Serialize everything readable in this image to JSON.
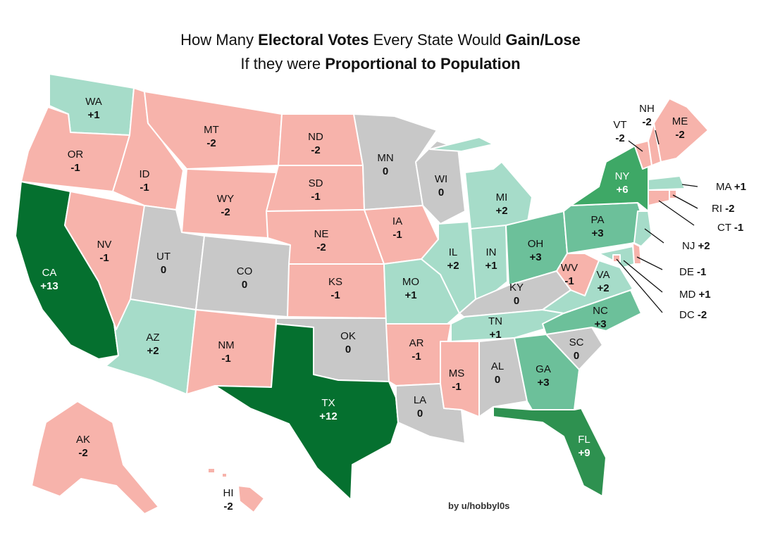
{
  "title": {
    "line1": [
      {
        "text": "How Many ",
        "bold": false
      },
      {
        "text": "Electoral Votes",
        "bold": true
      },
      {
        "text": " Every State Would ",
        "bold": false
      },
      {
        "text": "Gain/Lose",
        "bold": true
      }
    ],
    "line2": [
      {
        "text": "If they were ",
        "bold": false
      },
      {
        "text": "Proportional to Population",
        "bold": true
      }
    ]
  },
  "credit": "by u/hobbyl0s",
  "colors": {
    "-2": "#f7b3ab",
    "-1": "#f7b3ab",
    "0": "#c8c8c8",
    "1": "#a6dcc9",
    "2": "#a6dcc9",
    "3": "#6cc09a",
    "6": "#3ea866",
    "9": "#2e9150",
    "12": "#05702f",
    "13": "#05702f"
  },
  "states": [
    {
      "code": "WA",
      "change": "+1"
    },
    {
      "code": "OR",
      "change": "-1"
    },
    {
      "code": "CA",
      "change": "+13"
    },
    {
      "code": "NV",
      "change": "-1"
    },
    {
      "code": "ID",
      "change": "-1"
    },
    {
      "code": "MT",
      "change": "-2"
    },
    {
      "code": "WY",
      "change": "-2"
    },
    {
      "code": "UT",
      "change": "0"
    },
    {
      "code": "AZ",
      "change": "+2"
    },
    {
      "code": "CO",
      "change": "0"
    },
    {
      "code": "NM",
      "change": "-1"
    },
    {
      "code": "ND",
      "change": "-2"
    },
    {
      "code": "SD",
      "change": "-1"
    },
    {
      "code": "NE",
      "change": "-2"
    },
    {
      "code": "KS",
      "change": "-1"
    },
    {
      "code": "OK",
      "change": "0"
    },
    {
      "code": "TX",
      "change": "+12"
    },
    {
      "code": "MN",
      "change": "0"
    },
    {
      "code": "IA",
      "change": "-1"
    },
    {
      "code": "MO",
      "change": "+1"
    },
    {
      "code": "AR",
      "change": "-1"
    },
    {
      "code": "LA",
      "change": "0"
    },
    {
      "code": "WI",
      "change": "0"
    },
    {
      "code": "IL",
      "change": "+2"
    },
    {
      "code": "MI",
      "change": "+2"
    },
    {
      "code": "IN",
      "change": "+1"
    },
    {
      "code": "OH",
      "change": "+3"
    },
    {
      "code": "KY",
      "change": "0"
    },
    {
      "code": "TN",
      "change": "+1"
    },
    {
      "code": "MS",
      "change": "-1"
    },
    {
      "code": "AL",
      "change": "0"
    },
    {
      "code": "GA",
      "change": "+3"
    },
    {
      "code": "FL",
      "change": "+9"
    },
    {
      "code": "SC",
      "change": "0"
    },
    {
      "code": "NC",
      "change": "+3"
    },
    {
      "code": "VA",
      "change": "+2"
    },
    {
      "code": "WV",
      "change": "-1"
    },
    {
      "code": "PA",
      "change": "+3"
    },
    {
      "code": "NY",
      "change": "+6"
    },
    {
      "code": "VT",
      "change": "-2"
    },
    {
      "code": "NH",
      "change": "-2"
    },
    {
      "code": "ME",
      "change": "-2"
    },
    {
      "code": "MA",
      "change": "+1"
    },
    {
      "code": "RI",
      "change": "-2"
    },
    {
      "code": "CT",
      "change": "-1"
    },
    {
      "code": "NJ",
      "change": "+2"
    },
    {
      "code": "DE",
      "change": "-1"
    },
    {
      "code": "MD",
      "change": "+1"
    },
    {
      "code": "DC",
      "change": "-2"
    },
    {
      "code": "AK",
      "change": "-2"
    },
    {
      "code": "HI",
      "change": "-2"
    }
  ]
}
